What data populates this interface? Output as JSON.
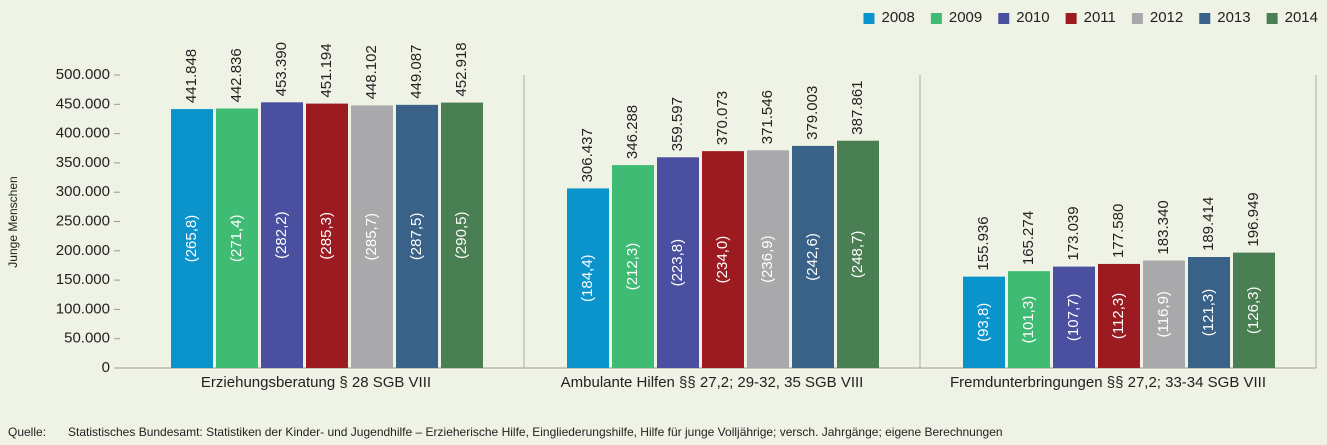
{
  "chart_data": {
    "type": "bar",
    "y_axis_label": "Junge Menschen",
    "categories": [
      "Erziehungsberatung § 28 SGB VIII",
      "Ambulante Hilfen §§ 27,2; 29-32, 35 SGB VIII",
      "Fremdunterbringungen §§ 27,2; 33-34 SGB VIII"
    ],
    "series": [
      {
        "name": "2008",
        "color": "#0b93cc",
        "values": [
          441848,
          306437,
          155936
        ],
        "value_labels": [
          "441.848",
          "306.437",
          "155.936"
        ],
        "rate_labels": [
          "(265,8)",
          "(184,4)",
          "(93,8)"
        ]
      },
      {
        "name": "2009",
        "color": "#3fbb74",
        "values": [
          442836,
          346288,
          165274
        ],
        "value_labels": [
          "442.836",
          "346.288",
          "165.274"
        ],
        "rate_labels": [
          "(271,4)",
          "(212,3)",
          "(101,3)"
        ]
      },
      {
        "name": "2010",
        "color": "#4a509f",
        "values": [
          453390,
          359597,
          173039
        ],
        "value_labels": [
          "453.390",
          "359.597",
          "173.039"
        ],
        "rate_labels": [
          "(282,2)",
          "(223,8)",
          "(107,7)"
        ]
      },
      {
        "name": "2011",
        "color": "#9b1b20",
        "values": [
          451194,
          370073,
          177580
        ],
        "value_labels": [
          "451.194",
          "370.073",
          "177.580"
        ],
        "rate_labels": [
          "(285,3)",
          "(234,0)",
          "(112,3)"
        ]
      },
      {
        "name": "2012",
        "color": "#a9a9ab",
        "values": [
          448102,
          371546,
          183340
        ],
        "value_labels": [
          "448.102",
          "371.546",
          "183.340"
        ],
        "rate_labels": [
          "(285,7)",
          "(236,9)",
          "(116,9)"
        ]
      },
      {
        "name": "2013",
        "color": "#3a6187",
        "values": [
          449087,
          379003,
          189414
        ],
        "value_labels": [
          "449.087",
          "379.003",
          "189.414"
        ],
        "rate_labels": [
          "(287,5)",
          "(242,6)",
          "(121,3)"
        ]
      },
      {
        "name": "2014",
        "color": "#4a7f53",
        "values": [
          452918,
          387861,
          196949
        ],
        "value_labels": [
          "452.918",
          "387.861",
          "196.949"
        ],
        "rate_labels": [
          "(290,5)",
          "(248,7)",
          "(126,3)"
        ]
      }
    ],
    "ylim": [
      0,
      500000
    ],
    "yticks": [
      0,
      {
        "value": 50000,
        "label": "50.000"
      },
      {
        "value": 100000,
        "label": "100.000"
      },
      {
        "value": 150000,
        "label": "150.000"
      },
      {
        "value": 200000,
        "label": "200.000"
      },
      {
        "value": 250000,
        "label": "250.000"
      },
      {
        "value": 300000,
        "label": "300.000"
      },
      {
        "value": 350000,
        "label": "350.000"
      },
      {
        "value": 400000,
        "label": "400.000"
      },
      {
        "value": 450000,
        "label": "450.000"
      },
      {
        "value": 500000,
        "label": "500.000"
      }
    ],
    "legend": "top-right",
    "source_label": "Quelle:",
    "source": "Statistisches Bundesamt: Statistiken der Kinder- und Jugendhilfe – Erzieherische Hilfe, Eingliederungshilfe, Hilfe für junge Volljährige; versch. Jahrgänge; eigene Berechnungen"
  }
}
